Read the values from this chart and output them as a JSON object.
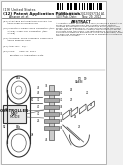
{
  "bg_color": "#f0f0f0",
  "page_bg": "#ffffff",
  "barcode_color": "#000000",
  "text_color": "#333333",
  "controller_text": [
    "CONTROLLER",
    "MAP",
    "MODE"
  ]
}
